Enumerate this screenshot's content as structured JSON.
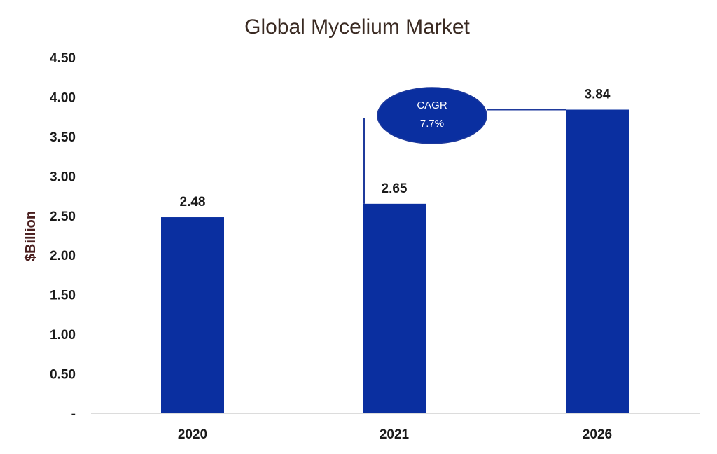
{
  "chart_data": {
    "type": "bar",
    "title": "Global Mycelium Market",
    "ylabel": "$Billion",
    "xlabel": "",
    "categories": [
      "2020",
      "2021",
      "2026"
    ],
    "values": [
      2.48,
      2.65,
      3.84
    ],
    "data_labels": [
      "2.48",
      "2.65",
      "3.84"
    ],
    "ylim": [
      0,
      4.5
    ],
    "y_ticks": [
      0,
      0.5,
      1.0,
      1.5,
      2.0,
      2.5,
      3.0,
      3.5,
      4.0,
      4.5
    ],
    "y_tick_labels": [
      "-",
      "0.50",
      "1.00",
      "1.50",
      "2.00",
      "2.50",
      "3.00",
      "3.50",
      "4.00",
      "4.50"
    ],
    "grid": false,
    "legend": "none",
    "annotation": {
      "line1": "CAGR",
      "line2": "7.7%"
    },
    "colors": {
      "bar": "#0A2FA0",
      "title": "#3a2a22",
      "axis_text": "#1a1a1a",
      "ylabel": "#4a1f1f",
      "annotation_fill": "#0A2FA0",
      "annotation_text": "#ffffff",
      "connector": "#1f3a9c",
      "axis_line": "#d0d0d0"
    }
  }
}
